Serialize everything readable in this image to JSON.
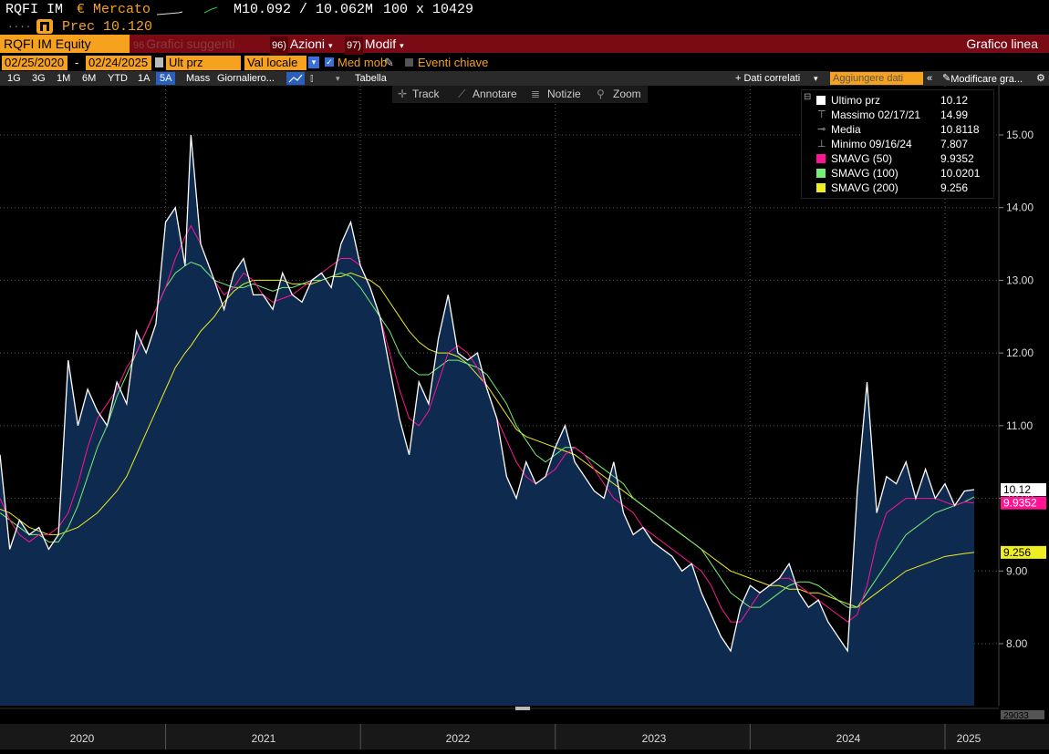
{
  "header": {
    "ticker": "RQFI IM",
    "currency_mercato": "€ Mercato",
    "bid_ask": "M10.092 / 10.062M",
    "size": "100 x 10429",
    "dots": "....",
    "prec_label": "Prec 10.120"
  },
  "toolbar": {
    "security": "RQFI IM Equity",
    "suggested_num": "96",
    "suggested": "Grafici suggeriti",
    "actions_num": "96)",
    "actions": "Azioni",
    "modif_num": "97)",
    "modif": "Modif",
    "chart_type": "Grafico linea"
  },
  "params": {
    "start_date": "02/25/2020",
    "dash": "-",
    "end_date": "02/24/2025",
    "price_field": "Ult prz",
    "currency": "Val locale",
    "moving_avg": "Med mob",
    "key_events": "Eventi chiave"
  },
  "periods": {
    "items": [
      "1G",
      "3G",
      "1M",
      "6M",
      "YTD",
      "1A",
      "5A",
      "Mass"
    ],
    "active": "5A",
    "frequency": "Giornaliero...",
    "table": "Tabella",
    "related": "+ Dati correlati",
    "add_data": "Aggiungere dati",
    "edit_chart": "Modificare gra..."
  },
  "tools": {
    "track": "Track",
    "annotate": "Annotare",
    "news": "Notizie",
    "zoom": "Zoom"
  },
  "legend": [
    {
      "label": "Ultimo prz",
      "value": "10.12",
      "color": "#ffffff",
      "type": "square"
    },
    {
      "label": "Massimo 02/17/21",
      "value": "14.99",
      "color": "#cccccc",
      "type": "high"
    },
    {
      "label": "Media",
      "value": "10.8118",
      "color": "#cccccc",
      "type": "avg"
    },
    {
      "label": "Minimo 09/16/24",
      "value": "7.807",
      "color": "#cccccc",
      "type": "low"
    },
    {
      "label": "SMAVG (50)",
      "value": "9.9352",
      "color": "#ff1493",
      "type": "square"
    },
    {
      "label": "SMAVG (100)",
      "value": "10.0201",
      "color": "#77ee77",
      "type": "square"
    },
    {
      "label": "SMAVG (200)",
      "value": "9.256",
      "color": "#eeee22",
      "type": "square"
    }
  ],
  "bottom_label": "29033",
  "chart_data": {
    "type": "line",
    "ylim": [
      7.35,
      15.6
    ],
    "y_ticks": [
      "8.00",
      "9.00",
      "10.00",
      "11.00",
      "12.00",
      "13.00",
      "14.00",
      "15.00"
    ],
    "x_ticks": [
      "2020",
      "2021",
      "2022",
      "2023",
      "2024",
      "2025"
    ],
    "x": [
      2020.15,
      2020.2,
      2020.25,
      2020.3,
      2020.35,
      2020.4,
      2020.45,
      2020.5,
      2020.55,
      2020.6,
      2020.65,
      2020.7,
      2020.75,
      2020.8,
      2020.85,
      2020.9,
      2020.95,
      2021.0,
      2021.05,
      2021.1,
      2021.13,
      2021.18,
      2021.25,
      2021.3,
      2021.35,
      2021.4,
      2021.45,
      2021.5,
      2021.55,
      2021.6,
      2021.65,
      2021.7,
      2021.75,
      2021.8,
      2021.85,
      2021.9,
      2021.95,
      2022.0,
      2022.05,
      2022.1,
      2022.15,
      2022.2,
      2022.25,
      2022.3,
      2022.35,
      2022.4,
      2022.45,
      2022.5,
      2022.55,
      2022.6,
      2022.65,
      2022.7,
      2022.75,
      2022.8,
      2022.85,
      2022.9,
      2022.95,
      2023.0,
      2023.05,
      2023.1,
      2023.15,
      2023.2,
      2023.25,
      2023.3,
      2023.35,
      2023.4,
      2023.45,
      2023.5,
      2023.55,
      2023.6,
      2023.65,
      2023.7,
      2023.75,
      2023.8,
      2023.85,
      2023.9,
      2023.95,
      2024.0,
      2024.05,
      2024.1,
      2024.15,
      2024.2,
      2024.25,
      2024.3,
      2024.35,
      2024.4,
      2024.45,
      2024.5,
      2024.55,
      2024.6,
      2024.65,
      2024.7,
      2024.75,
      2024.8,
      2024.85,
      2024.9,
      2024.95,
      2025.0,
      2025.05,
      2025.1,
      2025.15
    ],
    "series": [
      {
        "name": "Ultimo prz",
        "color": "#ffffff",
        "values": [
          10.6,
          9.3,
          9.7,
          9.5,
          9.6,
          9.3,
          9.5,
          11.9,
          11.0,
          11.5,
          11.2,
          11.0,
          11.6,
          11.3,
          12.3,
          12.0,
          12.4,
          13.8,
          14.0,
          13.2,
          15.0,
          13.5,
          13.0,
          12.6,
          13.1,
          13.3,
          12.8,
          12.8,
          12.6,
          13.1,
          12.8,
          12.7,
          13.0,
          13.1,
          12.9,
          13.5,
          13.8,
          13.2,
          12.9,
          12.5,
          11.8,
          11.1,
          10.6,
          11.6,
          11.3,
          12.2,
          12.8,
          12.0,
          11.9,
          12.0,
          11.5,
          11.1,
          10.3,
          10.0,
          10.5,
          10.2,
          10.3,
          10.7,
          11.0,
          10.5,
          10.3,
          10.1,
          10.0,
          10.5,
          9.8,
          9.5,
          9.6,
          9.4,
          9.3,
          9.2,
          9.0,
          9.1,
          8.7,
          8.4,
          8.1,
          7.9,
          8.5,
          8.8,
          8.7,
          8.8,
          8.9,
          9.1,
          8.7,
          8.5,
          8.6,
          8.3,
          8.1,
          7.9,
          10.1,
          11.6,
          9.8,
          10.3,
          10.2,
          10.5,
          10.0,
          10.4,
          10.0,
          10.2,
          9.9,
          10.1,
          10.12
        ]
      },
      {
        "name": "SMAVG (50)",
        "color": "#ff1493",
        "values": [
          10.0,
          9.7,
          9.5,
          9.4,
          9.5,
          9.5,
          9.6,
          9.8,
          10.2,
          10.7,
          11.1,
          11.3,
          11.5,
          11.8,
          12.0,
          12.3,
          12.6,
          12.9,
          13.3,
          13.6,
          13.75,
          13.5,
          13.0,
          12.8,
          12.9,
          13.1,
          13.0,
          12.8,
          12.7,
          12.75,
          12.8,
          12.9,
          13.0,
          13.1,
          13.2,
          13.3,
          13.3,
          13.2,
          12.9,
          12.5,
          12.0,
          11.5,
          11.1,
          11.0,
          11.2,
          11.6,
          12.0,
          12.1,
          12.0,
          11.8,
          11.5,
          11.1,
          10.8,
          10.5,
          10.3,
          10.2,
          10.3,
          10.4,
          10.6,
          10.7,
          10.6,
          10.4,
          10.2,
          10.0,
          9.9,
          9.8,
          9.6,
          9.5,
          9.4,
          9.3,
          9.2,
          9.1,
          9.0,
          8.8,
          8.5,
          8.3,
          8.3,
          8.5,
          8.7,
          8.8,
          8.9,
          8.9,
          8.8,
          8.7,
          8.6,
          8.5,
          8.4,
          8.3,
          8.4,
          8.8,
          9.4,
          9.8,
          9.9,
          10.0,
          10.0,
          10.0,
          10.0,
          9.95,
          9.9,
          9.95,
          9.935
        ]
      },
      {
        "name": "SMAVG (100)",
        "color": "#77ee77",
        "values": [
          9.8,
          9.7,
          9.6,
          9.5,
          9.5,
          9.4,
          9.4,
          9.6,
          9.9,
          10.3,
          10.7,
          11.0,
          11.4,
          11.7,
          12.0,
          12.3,
          12.6,
          12.9,
          13.1,
          13.2,
          13.25,
          13.2,
          13.0,
          12.95,
          12.9,
          12.9,
          12.95,
          12.9,
          12.85,
          12.9,
          12.9,
          12.95,
          13.0,
          13.0,
          13.05,
          13.1,
          13.05,
          12.9,
          12.7,
          12.5,
          12.3,
          12.0,
          11.8,
          11.7,
          11.7,
          11.8,
          11.9,
          11.9,
          11.85,
          11.8,
          11.7,
          11.5,
          11.3,
          11.0,
          10.8,
          10.6,
          10.5,
          10.6,
          10.7,
          10.7,
          10.6,
          10.5,
          10.4,
          10.3,
          10.2,
          10.0,
          9.9,
          9.8,
          9.7,
          9.6,
          9.5,
          9.4,
          9.3,
          9.1,
          8.9,
          8.7,
          8.6,
          8.5,
          8.5,
          8.6,
          8.7,
          8.8,
          8.85,
          8.85,
          8.8,
          8.7,
          8.6,
          8.5,
          8.5,
          8.7,
          8.9,
          9.1,
          9.3,
          9.5,
          9.6,
          9.7,
          9.8,
          9.85,
          9.9,
          9.95,
          10.02
        ]
      },
      {
        "name": "SMAVG (200)",
        "color": "#eeee22",
        "values": [
          9.85,
          9.8,
          9.7,
          9.6,
          9.55,
          9.5,
          9.5,
          9.55,
          9.6,
          9.7,
          9.8,
          9.95,
          10.1,
          10.3,
          10.6,
          10.9,
          11.2,
          11.5,
          11.8,
          12.0,
          12.1,
          12.3,
          12.5,
          12.7,
          12.85,
          12.95,
          13.0,
          13.0,
          13.0,
          13.0,
          12.95,
          12.95,
          12.95,
          13.0,
          13.05,
          13.05,
          13.1,
          13.05,
          13.0,
          12.9,
          12.7,
          12.5,
          12.3,
          12.15,
          12.05,
          12.0,
          12.0,
          11.95,
          11.85,
          11.7,
          11.55,
          11.35,
          11.15,
          10.95,
          10.85,
          10.8,
          10.75,
          10.7,
          10.65,
          10.6,
          10.5,
          10.4,
          10.3,
          10.2,
          10.1,
          10.0,
          9.9,
          9.8,
          9.7,
          9.6,
          9.5,
          9.4,
          9.3,
          9.2,
          9.1,
          9.0,
          8.95,
          8.9,
          8.85,
          8.8,
          8.8,
          8.75,
          8.75,
          8.7,
          8.7,
          8.65,
          8.6,
          8.55,
          8.5,
          8.6,
          8.7,
          8.8,
          8.9,
          9.0,
          9.05,
          9.1,
          9.15,
          9.2,
          9.22,
          9.24,
          9.256
        ]
      }
    ],
    "right_labels": [
      {
        "text": "10.12",
        "value": 10.12,
        "bg": "#ffffff",
        "fg": "#000000"
      },
      {
        "text": "9.9352",
        "value": 9.9352,
        "bg": "#ff1493",
        "fg": "#ffffff"
      },
      {
        "text": "9.256",
        "value": 9.256,
        "bg": "#eeee22",
        "fg": "#000000"
      }
    ]
  }
}
